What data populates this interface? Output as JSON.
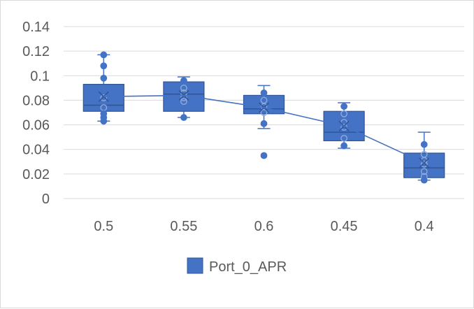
{
  "chart_data": {
    "type": "boxplot",
    "title": "",
    "xlabel": "",
    "ylabel": "",
    "ylim": [
      0,
      0.14
    ],
    "yticks": [
      "0",
      "0.02",
      "0.04",
      "0.06",
      "0.08",
      "0.1",
      "0.12",
      "0.14"
    ],
    "ytick_values": [
      0,
      0.02,
      0.04,
      0.06,
      0.08,
      0.1,
      0.12,
      0.14
    ],
    "grid": true,
    "legend_position": "bottom",
    "categories": [
      "0.5",
      "0.55",
      "0.6",
      "0.45",
      "0.4"
    ],
    "series": [
      {
        "name": "Port_0_APR",
        "color": "#4472c4",
        "boxes": [
          {
            "category": "0.5",
            "min": 0.063,
            "q1": 0.071,
            "median": 0.076,
            "q3": 0.093,
            "max": 0.117,
            "mean": 0.083,
            "points": [
              0.117,
              0.108,
              0.098,
              0.082,
              0.074,
              0.069,
              0.066,
              0.063
            ]
          },
          {
            "category": "0.55",
            "min": 0.066,
            "q1": 0.071,
            "median": 0.085,
            "q3": 0.095,
            "max": 0.099,
            "mean": 0.084,
            "points": [
              0.096,
              0.09,
              0.086,
              0.082,
              0.079,
              0.066
            ]
          },
          {
            "category": "0.6",
            "min": 0.057,
            "q1": 0.069,
            "median": 0.073,
            "q3": 0.084,
            "max": 0.092,
            "mean": 0.074,
            "points": [
              0.086,
              0.08,
              0.075,
              0.07,
              0.061,
              0.035
            ]
          },
          {
            "category": "0.45",
            "min": 0.041,
            "q1": 0.047,
            "median": 0.054,
            "q3": 0.071,
            "max": 0.078,
            "mean": 0.059,
            "points": [
              0.075,
              0.069,
              0.062,
              0.058,
              0.049,
              0.043
            ]
          },
          {
            "category": "0.4",
            "min": 0.015,
            "q1": 0.017,
            "median": 0.025,
            "q3": 0.037,
            "max": 0.054,
            "mean": 0.029,
            "points": [
              0.044,
              0.036,
              0.031,
              0.028,
              0.022,
              0.018,
              0.015
            ]
          }
        ]
      }
    ]
  },
  "legend": {
    "label": "Port_0_APR"
  }
}
